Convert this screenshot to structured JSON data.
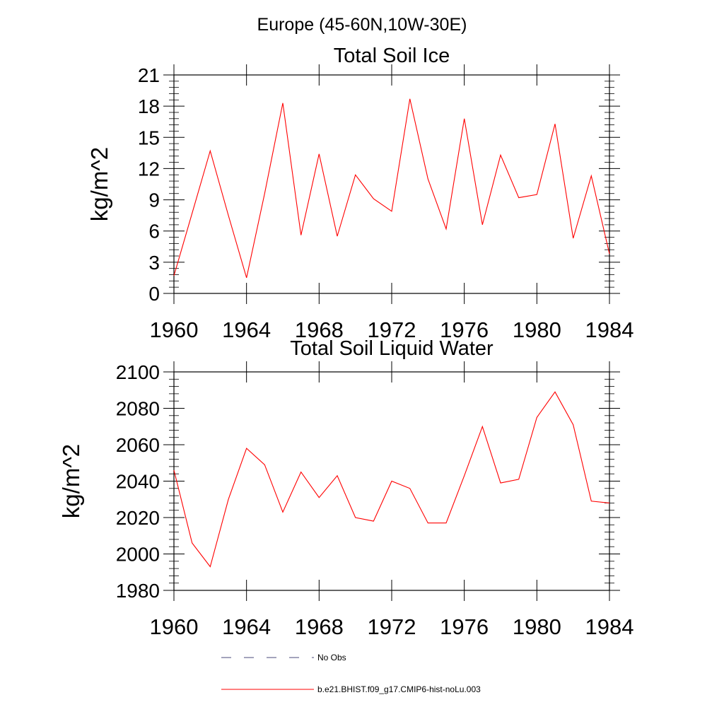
{
  "figure": {
    "title": "Europe (45-60N,10W-30E)"
  },
  "chart_data": [
    {
      "type": "line",
      "title": "Total Soil Ice",
      "xlabel": "",
      "ylabel": "kg/m^2",
      "xlim": [
        1960,
        1984
      ],
      "ylim": [
        0,
        21
      ],
      "x_ticks": [
        1960,
        1964,
        1968,
        1972,
        1976,
        1980,
        1984
      ],
      "y_ticks": [
        0,
        3,
        6,
        9,
        12,
        15,
        18,
        21
      ],
      "y_tick_labels": [
        "0",
        "3",
        "6",
        "9",
        "12",
        "15",
        "18",
        "21"
      ],
      "x": [
        1960,
        1961,
        1962,
        1963,
        1964,
        1965,
        1966,
        1967,
        1968,
        1969,
        1970,
        1971,
        1972,
        1973,
        1974,
        1975,
        1976,
        1977,
        1978,
        1979,
        1980,
        1981,
        1982,
        1983,
        1984
      ],
      "series": [
        {
          "name": "b.e21.BHIST.f09_g17.CMIP6-hist-noLu.003",
          "color": "#ff0000",
          "values": [
            1.7,
            7.7,
            13.7,
            7.5,
            1.5,
            9.6,
            18.3,
            5.6,
            13.4,
            5.5,
            11.4,
            9.1,
            7.9,
            18.7,
            11.0,
            6.2,
            16.8,
            6.6,
            13.3,
            9.2,
            9.5,
            16.3,
            5.3,
            11.3,
            3.8
          ]
        }
      ]
    },
    {
      "type": "line",
      "title": "Total Soil Liquid Water",
      "xlabel": "",
      "ylabel": "kg/m^2",
      "xlim": [
        1960,
        1984
      ],
      "ylim": [
        1980,
        2100
      ],
      "x_ticks": [
        1960,
        1964,
        1968,
        1972,
        1976,
        1980,
        1984
      ],
      "y_ticks": [
        1980,
        2000,
        2020,
        2040,
        2060,
        2080,
        2100
      ],
      "y_tick_labels": [
        "1980",
        "2000",
        "2020",
        "2040",
        "2060",
        "2080",
        "2100"
      ],
      "x": [
        1960,
        1961,
        1962,
        1963,
        1964,
        1965,
        1966,
        1967,
        1968,
        1969,
        1970,
        1971,
        1972,
        1973,
        1974,
        1975,
        1976,
        1977,
        1978,
        1979,
        1980,
        1981,
        1982,
        1983,
        1984
      ],
      "series": [
        {
          "name": "b.e21.BHIST.f09_g17.CMIP6-hist-noLu.003",
          "color": "#ff0000",
          "values": [
            2046,
            2006,
            1993,
            2030,
            2058,
            2049,
            2023,
            2045,
            2031,
            2043,
            2020,
            2018,
            2040,
            2036,
            2017,
            2017,
            2043,
            2070,
            2039,
            2041,
            2075,
            2089,
            2071,
            2029,
            2028
          ]
        }
      ]
    }
  ],
  "legend": [
    {
      "label": "No Obs",
      "style": "dashed",
      "color": "#4a4a7a"
    },
    {
      "label": "b.e21.BHIST.f09_g17.CMIP6-hist-noLu.003",
      "style": "solid",
      "color": "#ff0000"
    }
  ]
}
